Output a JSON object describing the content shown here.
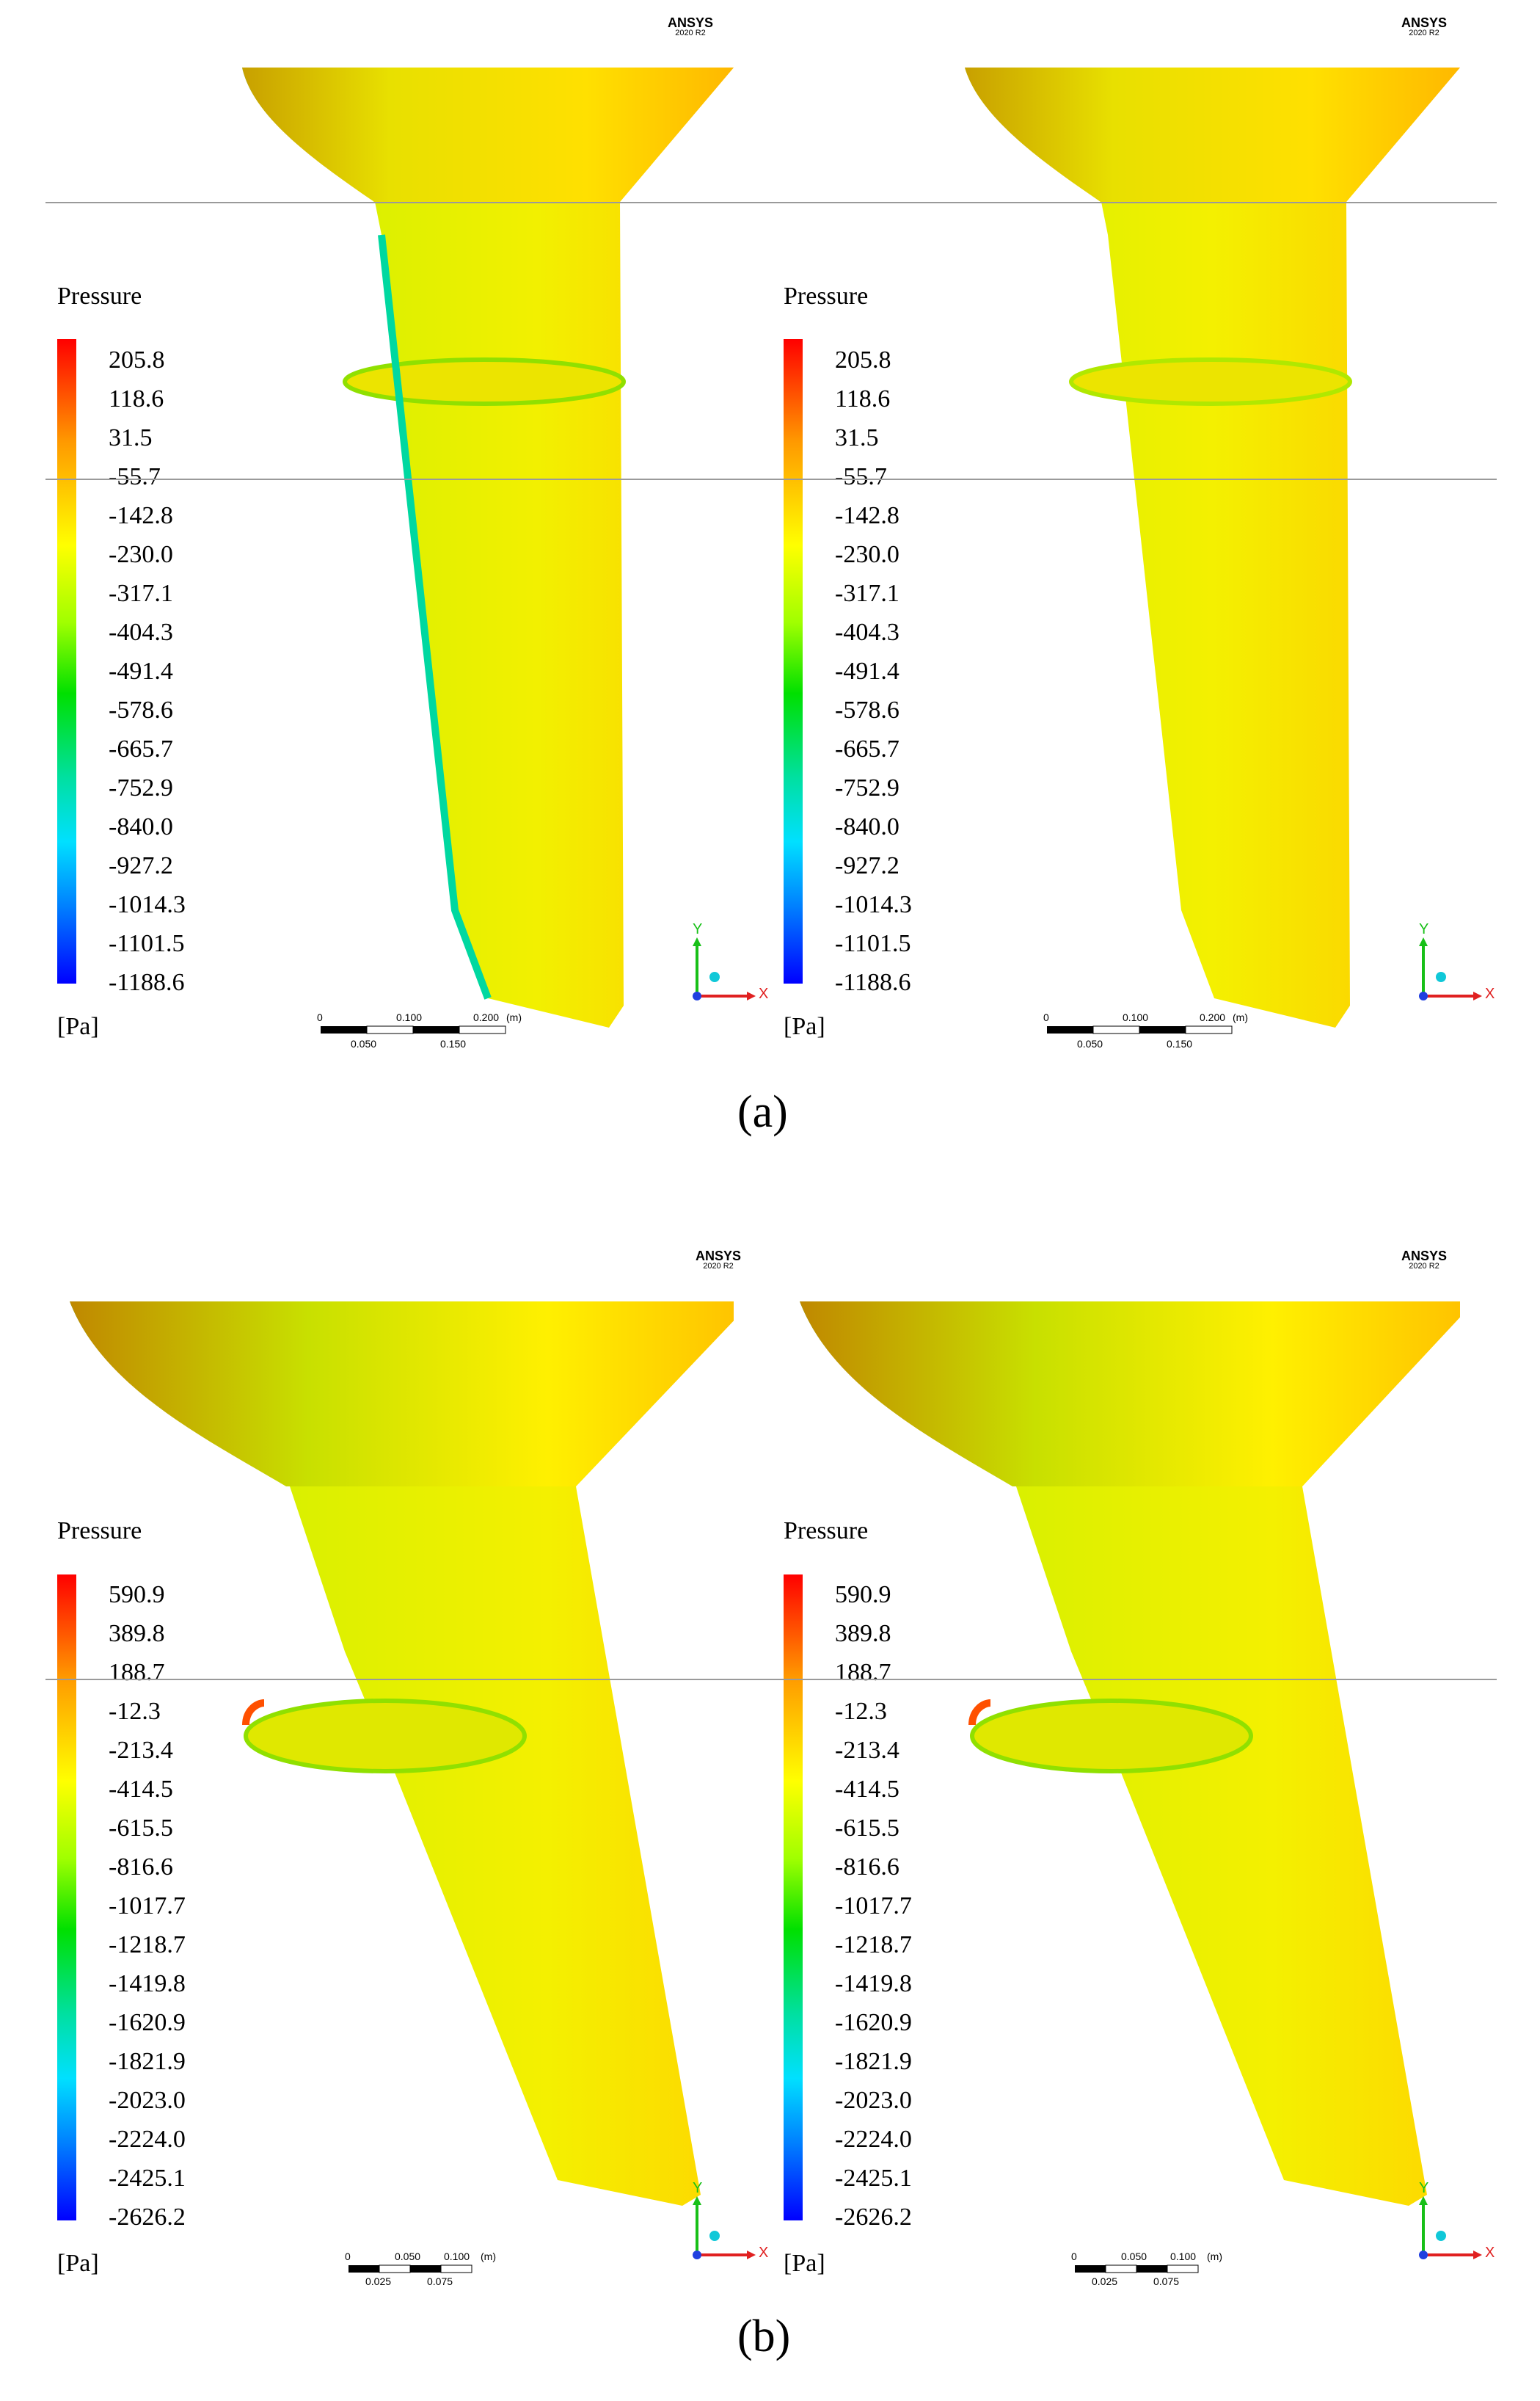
{
  "software": {
    "name": "ANSYS",
    "version": "2020 R2"
  },
  "legend": {
    "title": "Pressure",
    "unit": "[Pa]"
  },
  "axis_labels": {
    "x": "X",
    "y": "Y"
  },
  "figure_a": {
    "caption": "(a)",
    "ticks": [
      "205.8",
      "118.6",
      "31.5",
      "-55.7",
      "-142.8",
      "-230.0",
      "-317.1",
      "-404.3",
      "-491.4",
      "-578.6",
      "-665.7",
      "-752.9",
      "-840.0",
      "-927.2",
      "-1014.3",
      "-1101.5",
      "-1188.6"
    ],
    "scale_top": [
      "0",
      "0.100",
      "0.200",
      "(m)"
    ],
    "scale_bottom": [
      "0.050",
      "0.150"
    ]
  },
  "figure_b": {
    "caption": "(b)",
    "ticks": [
      "590.9",
      "389.8",
      "188.7",
      "-12.3",
      "-213.4",
      "-414.5",
      "-615.5",
      "-816.6",
      "-1017.7",
      "-1218.7",
      "-1419.8",
      "-1620.9",
      "-1821.9",
      "-2023.0",
      "-2224.0",
      "-2425.1",
      "-2626.2"
    ],
    "scale_top": [
      "0",
      "0.050",
      "0.100",
      "(m)"
    ],
    "scale_bottom": [
      "0.025",
      "0.075"
    ]
  },
  "colors": {
    "max": "#ff0000",
    "high": "#ff9a00",
    "mid": "#ffff00",
    "low": "#00e000",
    "min": "#0000ff"
  }
}
